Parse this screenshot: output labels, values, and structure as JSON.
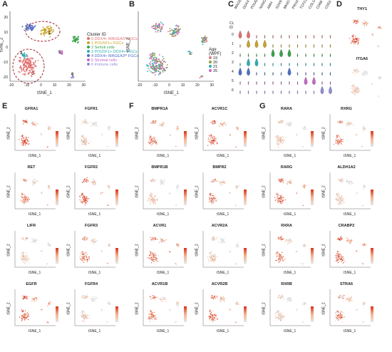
{
  "panels": {
    "A": "A",
    "B": "B",
    "C": "C",
    "D": "D",
    "E": "E",
    "F": "F",
    "G": "G"
  },
  "axes": {
    "x": "tSNE_1",
    "y": "tSNE_2"
  },
  "panelA": {
    "legend_title": "Cluster ID",
    "clusters": [
      {
        "label": "0 DDX4+ MAGEA3ᵈ FGCs",
        "color": "#e07070"
      },
      {
        "label": "1 POU5F1+ FGCs",
        "color": "#c9a326"
      },
      {
        "label": "2 Sertoli cells",
        "color": "#3aa24a"
      },
      {
        "label": "3 POU5F1+ DDX4+ FGCs",
        "color": "#2ab0b6"
      },
      {
        "label": "4 DDX4+ MAGEA3ᴴⁱ FGCs",
        "color": "#4f6ec8"
      },
      {
        "label": "5 Stromal cells",
        "color": "#c666c6"
      },
      {
        "label": "6 Immune cells",
        "color": "#8e8ed8"
      }
    ],
    "xticks": [
      "-20",
      "-10",
      "0",
      "10",
      "20",
      "30"
    ],
    "yticks": [
      "20",
      "10",
      "0",
      "-10",
      "-20"
    ],
    "cluster_tags": [
      "0",
      "1",
      "2",
      "3",
      "4",
      "5",
      "6"
    ]
  },
  "panelB": {
    "legend_title": "Age\n(WPF)",
    "ages": [
      {
        "label": "19",
        "color": "#e07a7a"
      },
      {
        "label": "20",
        "color": "#8aa43a"
      },
      {
        "label": "21",
        "color": "#2ab0b6"
      },
      {
        "label": "25",
        "color": "#c666c6"
      }
    ],
    "xticks": [
      "-20",
      "-10",
      "0",
      "10",
      "20",
      "30"
    ]
  },
  "panelC": {
    "row_header": "CL\nID",
    "genes": [
      "MAGEA3",
      "DDX4",
      "POU5F1",
      "NANOS3",
      "AMH",
      "SOX9",
      "MKI67",
      "PRHX",
      "TCF21",
      "COL1A1",
      "CD68",
      "CD53"
    ],
    "rows": [
      "0",
      "1",
      "2",
      "3",
      "4",
      "5",
      "6"
    ]
  },
  "panelD": {
    "genes": [
      "THY1",
      "ITGA6"
    ]
  },
  "panelE": {
    "genes": [
      "GFRA1",
      "FGFR1",
      "RET",
      "FGFR2",
      "LIFR",
      "FGFR3",
      "EGFR",
      "FGFR4"
    ]
  },
  "panelF": {
    "genes": [
      "BMPR1A",
      "ACVR1C",
      "BMPR1B",
      "BMPR2",
      "ACVR1",
      "ACVR2A",
      "ACVR1B",
      "ACVR2B"
    ]
  },
  "panelG": {
    "genes": [
      "RARA",
      "RXRG",
      "RARG",
      "ALDH1A2",
      "RXRA",
      "CRABP2",
      "RXRB",
      "STRA6"
    ]
  },
  "colorbar_ticks": [
    "6",
    "4",
    "2",
    "0"
  ]
}
